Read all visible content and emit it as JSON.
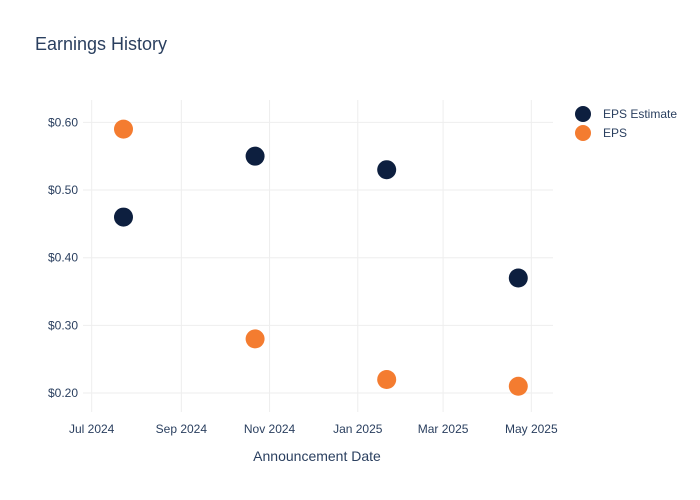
{
  "chart_data": {
    "type": "scatter",
    "title": "Earnings History",
    "xlabel": "Announcement Date",
    "ylabel": "",
    "x_ticks": [
      "Jul 2024",
      "Sep 2024",
      "Nov 2024",
      "Jan 2025",
      "Mar 2025",
      "May 2025"
    ],
    "y_ticks": [
      "$0.20",
      "$0.30",
      "$0.40",
      "$0.50",
      "$0.60"
    ],
    "x_range": [
      "2024-07-01",
      "2025-05-01"
    ],
    "ylim": [
      0.2,
      0.6
    ],
    "grid": true,
    "legend_position": "top-right",
    "series": [
      {
        "name": "EPS Estimate",
        "color": "#0d1f3f",
        "points": [
          {
            "x": "2024-07-23",
            "y": 0.46
          },
          {
            "x": "2024-10-22",
            "y": 0.55
          },
          {
            "x": "2025-01-21",
            "y": 0.53
          },
          {
            "x": "2025-04-22",
            "y": 0.37
          }
        ]
      },
      {
        "name": "EPS",
        "color": "#f47c30",
        "points": [
          {
            "x": "2024-07-23",
            "y": 0.59
          },
          {
            "x": "2024-10-22",
            "y": 0.28
          },
          {
            "x": "2025-01-21",
            "y": 0.22
          },
          {
            "x": "2025-04-22",
            "y": 0.21
          }
        ]
      }
    ]
  }
}
